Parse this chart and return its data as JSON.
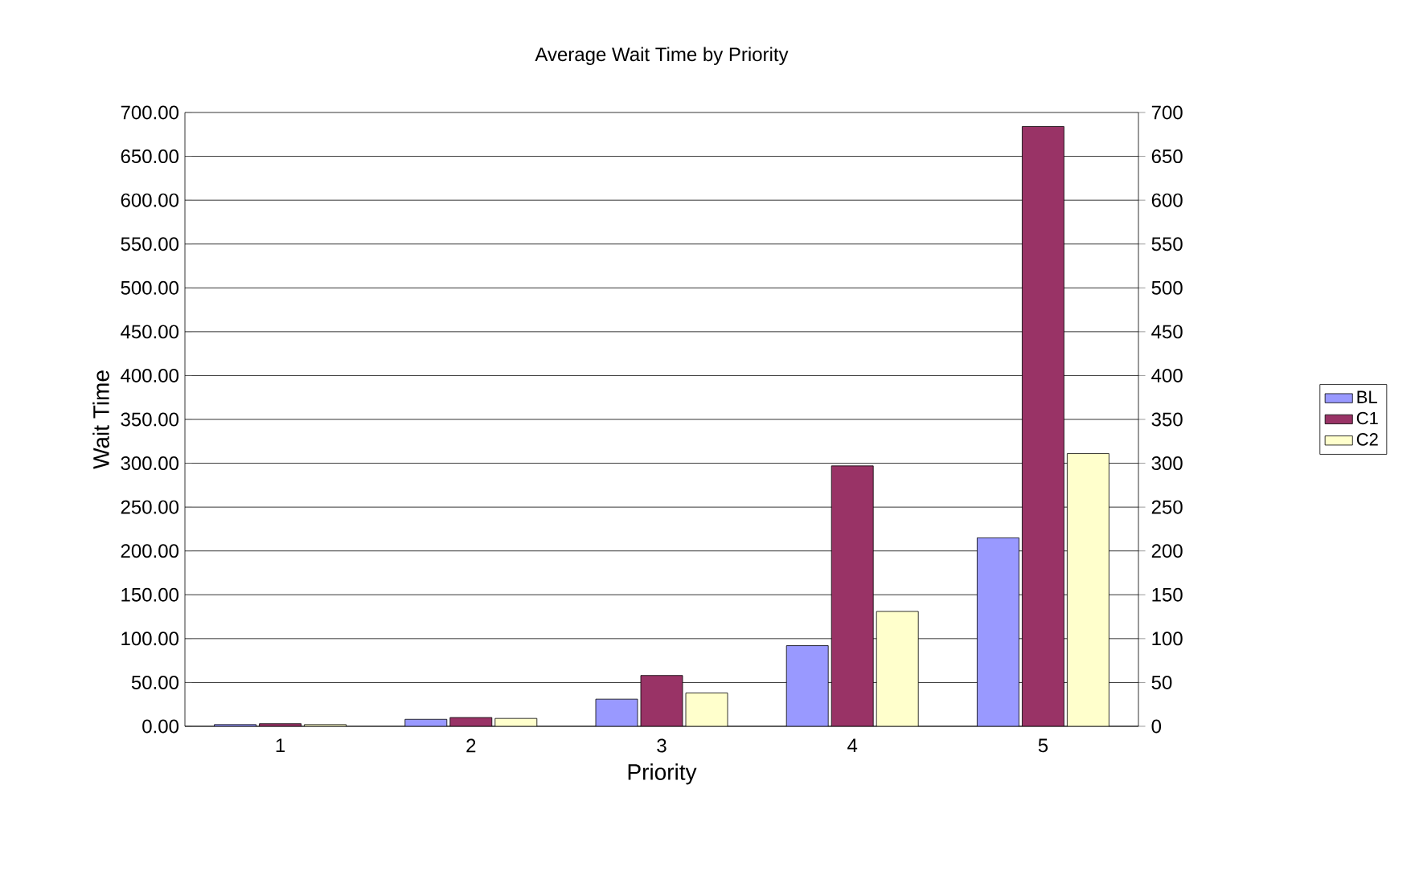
{
  "chart_data": {
    "type": "bar",
    "title": "Average Wait Time by Priority",
    "xlabel": "Priority",
    "ylabel": "Wait Time",
    "categories": [
      "1",
      "2",
      "3",
      "4",
      "5"
    ],
    "series": [
      {
        "name": "BL",
        "color": "#9999ff",
        "values": [
          2,
          8,
          31,
          92,
          215
        ]
      },
      {
        "name": "C1",
        "color": "#993366",
        "values": [
          3,
          10,
          58,
          297,
          684
        ]
      },
      {
        "name": "C2",
        "color": "#ffffcc",
        "values": [
          2,
          9,
          38,
          131,
          311
        ]
      }
    ],
    "ylim": [
      0,
      700
    ],
    "yticks": [
      {
        "value": 0,
        "label": "0.00"
      },
      {
        "value": 50,
        "label": "50.00"
      },
      {
        "value": 100,
        "label": "100.00"
      },
      {
        "value": 150,
        "label": "150.00"
      },
      {
        "value": 200,
        "label": "200.00"
      },
      {
        "value": 250,
        "label": "250.00"
      },
      {
        "value": 300,
        "label": "300.00"
      },
      {
        "value": 350,
        "label": "350.00"
      },
      {
        "value": 400,
        "label": "400.00"
      },
      {
        "value": 450,
        "label": "450.00"
      },
      {
        "value": 500,
        "label": "500.00"
      },
      {
        "value": 550,
        "label": "550.00"
      },
      {
        "value": 600,
        "label": "600.00"
      },
      {
        "value": 650,
        "label": "650.00"
      },
      {
        "value": 700,
        "label": "700.00"
      }
    ],
    "y2lim": [
      0,
      700
    ],
    "y2ticks": [
      0,
      50,
      100,
      150,
      200,
      250,
      300,
      350,
      400,
      450,
      500,
      550,
      600,
      650,
      700
    ],
    "grid": "y",
    "legend": "right"
  }
}
